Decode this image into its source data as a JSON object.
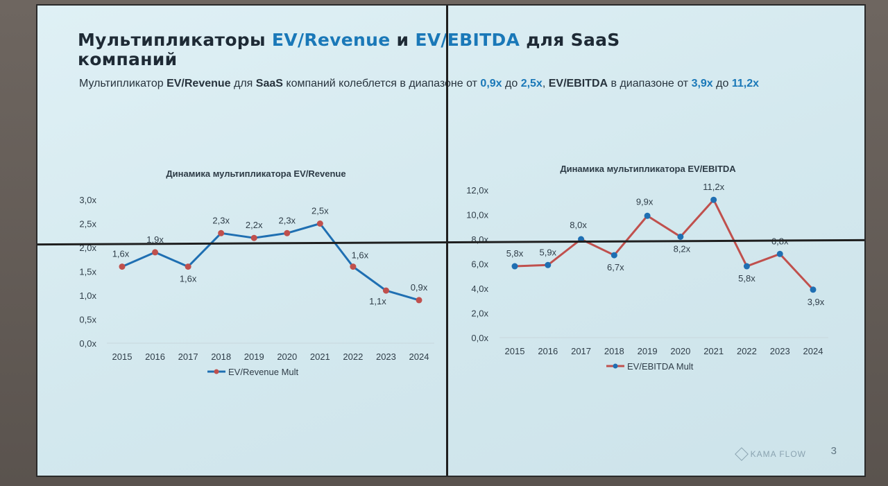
{
  "slide": {
    "title_part1": "Мультипликаторы ",
    "title_accent1": "EV/Revenue",
    "title_part2": " и ",
    "title_accent2": "EV/EBITDA",
    "title_part3": " для SaaS компаний",
    "subtitle": {
      "t1": "Мультипликатор ",
      "b1": "EV/Revenue",
      "t2": " для ",
      "b2": "SaaS",
      "t3": " компаний колеблется в диапазоне от ",
      "n1": "0,9x",
      "t4": " до ",
      "n2": "2,5x",
      "t5": ", ",
      "b3": "EV/EBITDA",
      "t6": " в диапазоне от ",
      "n3": "3,9x",
      "t7": " до ",
      "n4": "11,2x"
    },
    "logo_text": "KAMA FLOW",
    "page_number": "3",
    "colors": {
      "accent": "#1a78b8",
      "revenue_line": "#1f6fb2",
      "revenue_marker": "#c0504d",
      "ebitda_line": "#c0504d",
      "ebitda_marker": "#1f6fb2"
    }
  },
  "chart_data": [
    {
      "type": "line",
      "title": "Динамика мультипликатора EV/Revenue",
      "categories": [
        "2015",
        "2016",
        "2017",
        "2018",
        "2019",
        "2020",
        "2021",
        "2022",
        "2023",
        "2024"
      ],
      "series": [
        {
          "name": "EV/Revenue Mult",
          "values": [
            1.6,
            1.9,
            1.6,
            2.3,
            2.2,
            2.3,
            2.5,
            1.6,
            1.1,
            0.9
          ]
        }
      ],
      "data_labels": [
        "1,6x",
        "1,9x",
        "1,6x",
        "2,3x",
        "2,2x",
        "2,3x",
        "2,5x",
        "1,6x",
        "1,1x",
        "0,9x"
      ],
      "y_ticks": [
        "0,0x",
        "0,5x",
        "1,0x",
        "1,5x",
        "2,0x",
        "2,5x",
        "3,0x"
      ],
      "ylim": [
        0,
        3
      ],
      "grid": false,
      "legend": "bottom"
    },
    {
      "type": "line",
      "title": "Динамика мультипликатора EV/EBITDA",
      "categories": [
        "2015",
        "2016",
        "2017",
        "2018",
        "2019",
        "2020",
        "2021",
        "2022",
        "2023",
        "2024"
      ],
      "series": [
        {
          "name": "EV/EBITDA Mult",
          "values": [
            5.8,
            5.9,
            8.0,
            6.7,
            9.9,
            8.2,
            11.2,
            5.8,
            6.8,
            3.9
          ]
        }
      ],
      "data_labels": [
        "5,8x",
        "5,9x",
        "8,0x",
        "6,7x",
        "9,9x",
        "8,2x",
        "11,2x",
        "5,8x",
        "6,8x",
        "3,9x"
      ],
      "y_ticks": [
        "0,0x",
        "2,0x",
        "4,0x",
        "6,0x",
        "8,0x",
        "10,0x",
        "12,0x"
      ],
      "ylim": [
        0,
        12
      ],
      "grid": false,
      "legend": "bottom"
    }
  ]
}
